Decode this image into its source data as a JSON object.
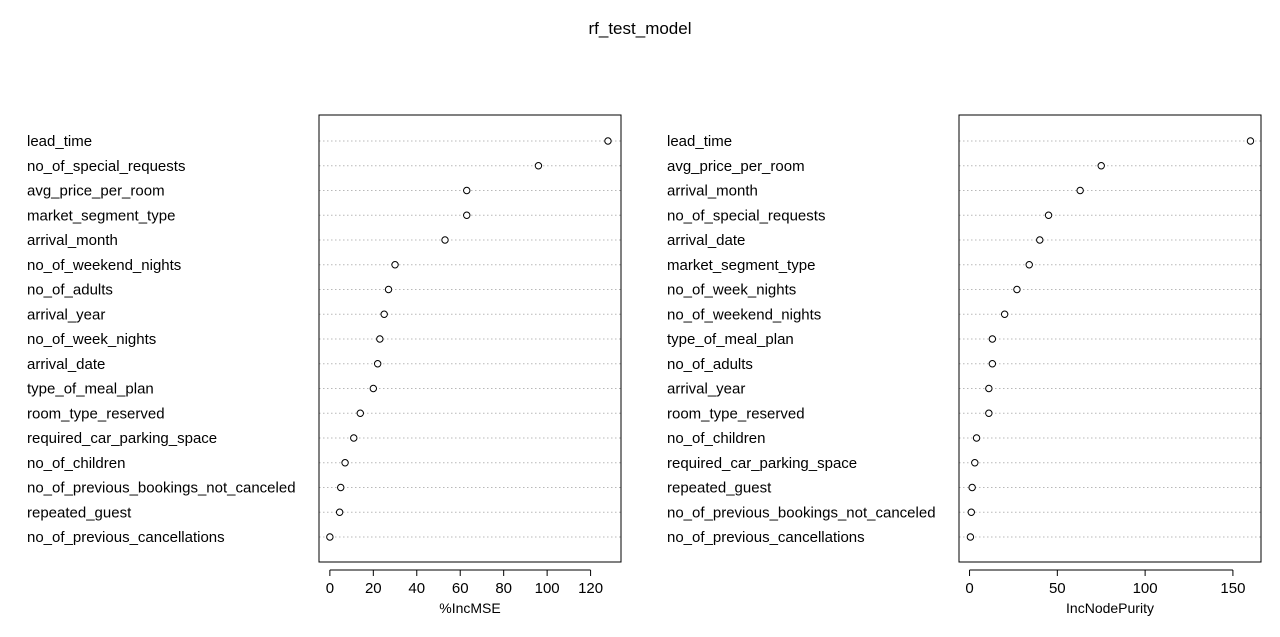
{
  "title": "rf_test_model",
  "chart_data": [
    {
      "type": "scatter",
      "title": "",
      "xlabel": "%IncMSE",
      "ylabel": "",
      "xlim": [
        -5,
        134
      ],
      "xticks": [
        0,
        20,
        40,
        60,
        80,
        100,
        120
      ],
      "grid": "dotted horizontal lines per category",
      "categories": [
        "lead_time",
        "no_of_special_requests",
        "avg_price_per_room",
        "market_segment_type",
        "arrival_month",
        "no_of_weekend_nights",
        "no_of_adults",
        "arrival_year",
        "no_of_week_nights",
        "arrival_date",
        "type_of_meal_plan",
        "room_type_reserved",
        "required_car_parking_space",
        "no_of_children",
        "no_of_previous_bookings_not_canceled",
        "repeated_guest",
        "no_of_previous_cancellations"
      ],
      "values": [
        128,
        96,
        63,
        63,
        53,
        30,
        27,
        25,
        23,
        22,
        20,
        14,
        11,
        7,
        5,
        4.5,
        0
      ]
    },
    {
      "type": "scatter",
      "title": "",
      "xlabel": "IncNodePurity",
      "ylabel": "",
      "xlim": [
        -6,
        166
      ],
      "xticks": [
        0,
        50,
        100,
        150
      ],
      "grid": "dotted horizontal lines per category",
      "categories": [
        "lead_time",
        "avg_price_per_room",
        "arrival_month",
        "no_of_special_requests",
        "arrival_date",
        "market_segment_type",
        "no_of_week_nights",
        "no_of_weekend_nights",
        "type_of_meal_plan",
        "no_of_adults",
        "arrival_year",
        "room_type_reserved",
        "no_of_children",
        "required_car_parking_space",
        "repeated_guest",
        "no_of_previous_bookings_not_canceled",
        "no_of_previous_cancellations"
      ],
      "values": [
        160,
        75,
        63,
        45,
        40,
        34,
        27,
        20,
        13,
        13,
        11,
        11,
        4,
        3,
        1.5,
        1,
        0.5
      ]
    }
  ]
}
